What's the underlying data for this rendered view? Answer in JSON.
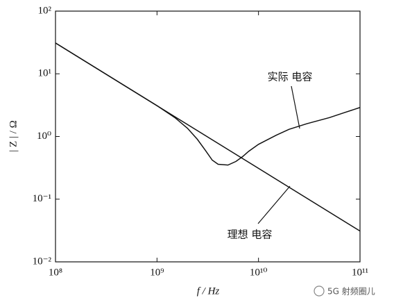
{
  "chart_data": {
    "type": "line",
    "x_label": "f / Hz",
    "y_label": "| Z | / Ω",
    "x_scale": "log",
    "y_scale": "log",
    "xlim": [
      100000000,
      100000000000
    ],
    "ylim": [
      0.01,
      100
    ],
    "xticks": [
      {
        "value": 100000000,
        "label": "10⁸"
      },
      {
        "value": 1000000000,
        "label": "10⁹"
      },
      {
        "value": 10000000000,
        "label": "10¹⁰"
      },
      {
        "value": 100000000000,
        "label": "10¹¹"
      }
    ],
    "yticks": [
      {
        "value": 0.01,
        "label": "10⁻²"
      },
      {
        "value": 0.1,
        "label": "10⁻¹"
      },
      {
        "value": 1,
        "label": "10⁰"
      },
      {
        "value": 10,
        "label": "10¹"
      },
      {
        "value": 100,
        "label": "10²"
      }
    ],
    "series": [
      {
        "name": "理想 电容",
        "color": "#111111",
        "x": [
          100000000,
          100000000000
        ],
        "values": [
          31,
          0.031
        ]
      },
      {
        "name": "实际 电容",
        "color": "#111111",
        "x": [
          100000000,
          500000000,
          1000000000,
          1500000000,
          2000000000,
          2500000000,
          3000000000,
          3500000000,
          4000000000,
          5000000000,
          6000000000,
          7000000000,
          8000000000,
          10000000000,
          15000000000,
          20000000000,
          30000000000,
          50000000000,
          70000000000,
          100000000000
        ],
        "values": [
          31,
          6.2,
          3.1,
          2.0,
          1.35,
          0.9,
          0.6,
          0.42,
          0.36,
          0.35,
          0.4,
          0.48,
          0.58,
          0.75,
          1.05,
          1.3,
          1.6,
          2.0,
          2.4,
          2.9
        ]
      }
    ],
    "watermark": "5G 射频圈儿"
  }
}
